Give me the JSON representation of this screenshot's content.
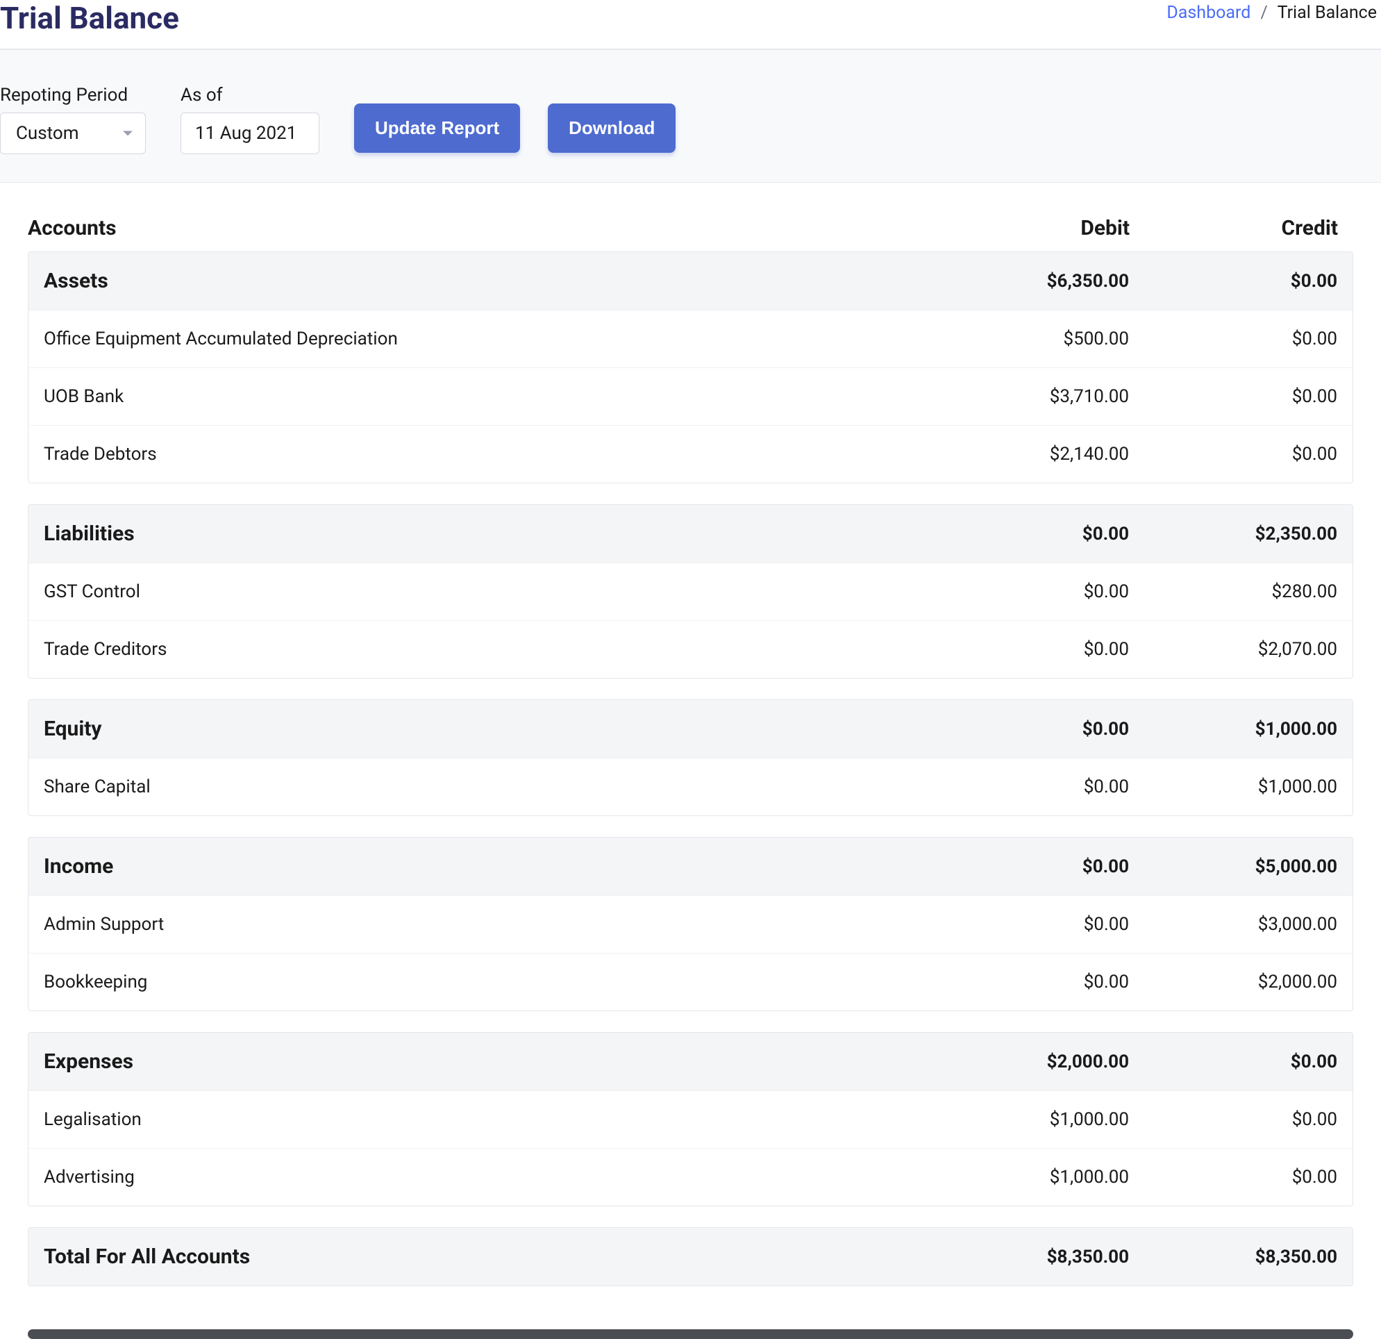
{
  "page": {
    "title": "Trial Balance"
  },
  "breadcrumb": {
    "link_label": "Dashboard",
    "separator": "/",
    "current": "Trial Balance"
  },
  "controls": {
    "period_label": "Repoting Period",
    "period_value": "Custom",
    "asof_label": "As of",
    "asof_value": "11 Aug 2021",
    "update_label": "Update Report",
    "download_label": "Download"
  },
  "columns": {
    "accounts": "Accounts",
    "debit": "Debit",
    "credit": "Credit"
  },
  "sections": [
    {
      "name": "Assets",
      "debit": "$6,350.00",
      "credit": "$0.00",
      "rows": [
        {
          "name": "Office Equipment Accumulated Depreciation",
          "debit": "$500.00",
          "credit": "$0.00"
        },
        {
          "name": "UOB Bank",
          "debit": "$3,710.00",
          "credit": "$0.00"
        },
        {
          "name": "Trade Debtors",
          "debit": "$2,140.00",
          "credit": "$0.00"
        }
      ]
    },
    {
      "name": "Liabilities",
      "debit": "$0.00",
      "credit": "$2,350.00",
      "rows": [
        {
          "name": "GST Control",
          "debit": "$0.00",
          "credit": "$280.00"
        },
        {
          "name": "Trade Creditors",
          "debit": "$0.00",
          "credit": "$2,070.00"
        }
      ]
    },
    {
      "name": "Equity",
      "debit": "$0.00",
      "credit": "$1,000.00",
      "rows": [
        {
          "name": "Share Capital",
          "debit": "$0.00",
          "credit": "$1,000.00"
        }
      ]
    },
    {
      "name": "Income",
      "debit": "$0.00",
      "credit": "$5,000.00",
      "rows": [
        {
          "name": "Admin Support",
          "debit": "$0.00",
          "credit": "$3,000.00"
        },
        {
          "name": "Bookkeeping",
          "debit": "$0.00",
          "credit": "$2,000.00"
        }
      ]
    },
    {
      "name": "Expenses",
      "debit": "$2,000.00",
      "credit": "$0.00",
      "rows": [
        {
          "name": "Legalisation",
          "debit": "$1,000.00",
          "credit": "$0.00"
        },
        {
          "name": "Advertising",
          "debit": "$1,000.00",
          "credit": "$0.00"
        }
      ]
    }
  ],
  "totals": {
    "label": "Total For All Accounts",
    "debit": "$8,350.00",
    "credit": "$8,350.00"
  },
  "colors": {
    "title": "#2b2b63",
    "link": "#4a6cf7",
    "button_bg": "#4e6bd0",
    "panel_bg": "#f4f5f7",
    "border": "#e5e6ec",
    "controls_bg": "#f8f9fb"
  }
}
